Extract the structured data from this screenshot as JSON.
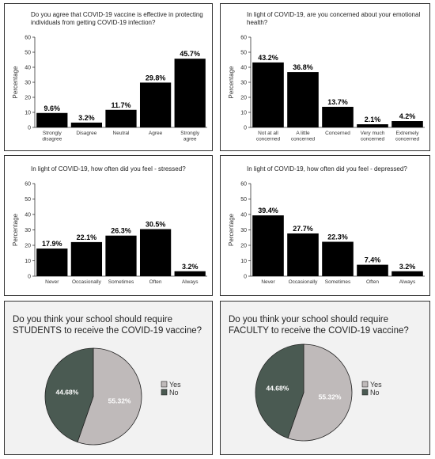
{
  "charts": [
    {
      "type": "bar",
      "title": "Do you agree that COVID-19 vaccine is effective in protecting individuals from getting COVID-19 infection?",
      "ylabel": "Percentage",
      "ylim": [
        0,
        60
      ],
      "yticks": [
        "0",
        "10",
        "20",
        "30",
        "40",
        "50",
        "60"
      ],
      "categories": [
        [
          "Strongly",
          "disagree"
        ],
        [
          "Disagree"
        ],
        [
          "Neutral"
        ],
        [
          "Agree"
        ],
        [
          "Strongly",
          "agree"
        ]
      ],
      "values": [
        9.6,
        3.2,
        11.7,
        29.8,
        45.7
      ],
      "labels": [
        "9.6%",
        "3.2%",
        "11.7%",
        "29.8%",
        "45.7%"
      ],
      "bar_color": "#000000"
    },
    {
      "type": "bar",
      "title": "In light of COVID-19, are you concerned about your emotional health?",
      "ylabel": "Percentage",
      "ylim": [
        0,
        60
      ],
      "yticks": [
        "0",
        "10",
        "20",
        "30",
        "40",
        "50",
        "60"
      ],
      "categories": [
        [
          "Not at all",
          "concerned"
        ],
        [
          "A little",
          "concerned"
        ],
        [
          "Concerned"
        ],
        [
          "Very much",
          "concerned"
        ],
        [
          "Extremely",
          "concerned"
        ]
      ],
      "values": [
        43.2,
        36.8,
        13.7,
        2.1,
        4.2
      ],
      "labels": [
        "43.2%",
        "36.8%",
        "13.7%",
        "2.1%",
        "4.2%"
      ],
      "bar_color": "#000000"
    },
    {
      "type": "bar",
      "title": "In light of COVID-19, how often did you feel - stressed?",
      "ylabel": "Percentage",
      "ylim": [
        0,
        60
      ],
      "yticks": [
        "0",
        "10",
        "20",
        "30",
        "40",
        "50",
        "60"
      ],
      "categories": [
        [
          "Never"
        ],
        [
          "Occasionally"
        ],
        [
          "Sometimes"
        ],
        [
          "Often"
        ],
        [
          "Always"
        ]
      ],
      "values": [
        17.9,
        22.1,
        26.3,
        30.5,
        3.2
      ],
      "labels": [
        "17.9%",
        "22.1%",
        "26.3%",
        "30.5%",
        "3.2%"
      ],
      "bar_color": "#000000"
    },
    {
      "type": "bar",
      "title": "In light of COVID-19, how often did you feel - depressed?",
      "ylabel": "Percentage",
      "ylim": [
        0,
        60
      ],
      "yticks": [
        "0",
        "10",
        "20",
        "30",
        "40",
        "50",
        "60"
      ],
      "categories": [
        [
          "Never"
        ],
        [
          "Occasionally"
        ],
        [
          "Sometimes"
        ],
        [
          "Often"
        ],
        [
          "Always"
        ]
      ],
      "values": [
        39.4,
        27.7,
        22.3,
        7.4,
        3.2
      ],
      "labels": [
        "39.4%",
        "27.7%",
        "22.3%",
        "7.4%",
        "3.2%"
      ],
      "bar_color": "#000000"
    },
    {
      "type": "pie",
      "title": "Do you think your school should require STUDENTS  to receive the COVID-19 vaccine?",
      "categories": [
        "Yes",
        "No"
      ],
      "values": [
        55.32,
        44.68
      ],
      "labels": [
        "55.32%",
        "44.68%"
      ],
      "colors": [
        "#bfbaba",
        "#4a5a52"
      ],
      "legend": "right"
    },
    {
      "type": "pie",
      "title": "Do you think your school should require FACULTY  to receive the COVID-19 vaccine?",
      "categories": [
        "Yes",
        "No"
      ],
      "values": [
        55.32,
        44.68
      ],
      "labels": [
        "55.32%",
        "44.68%"
      ],
      "colors": [
        "#bfbaba",
        "#4a5a52"
      ],
      "legend": "right"
    }
  ]
}
